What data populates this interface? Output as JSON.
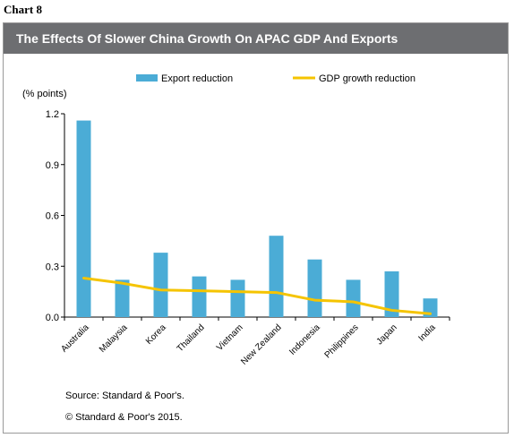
{
  "chart_label": "Chart 8",
  "title": "The Effects  Of Slower China Growth On APAC GDP And Exports",
  "chart_data": {
    "type": "bar",
    "title": "The Effects  Of Slower China Growth On APAC GDP And Exports",
    "ylabel": "(% points)",
    "xlabel": "",
    "ylim": [
      0,
      1.2
    ],
    "yticks": [
      "0.0",
      "0.3",
      "0.6",
      "0.9",
      "1.2"
    ],
    "grid": false,
    "legend": "top",
    "categories": [
      "Australia",
      "Malaysia",
      "Korea",
      "Thailand",
      "Vietnam",
      "New Zealand",
      "Indonesia",
      "Philippines",
      "Japan",
      "India"
    ],
    "series": [
      {
        "name": "Export reduction",
        "type": "bar",
        "color": "#4bacd6",
        "values": [
          1.16,
          0.22,
          0.38,
          0.24,
          0.22,
          0.48,
          0.34,
          0.22,
          0.27,
          0.11
        ]
      },
      {
        "name": "GDP growth reduction",
        "type": "line",
        "color": "#f5c400",
        "values": [
          0.23,
          0.2,
          0.16,
          0.155,
          0.15,
          0.145,
          0.1,
          0.09,
          0.04,
          0.02
        ]
      }
    ]
  },
  "footer": {
    "source": "Source: Standard & Poor's.",
    "copyright": "© Standard & Poor's 2015."
  }
}
